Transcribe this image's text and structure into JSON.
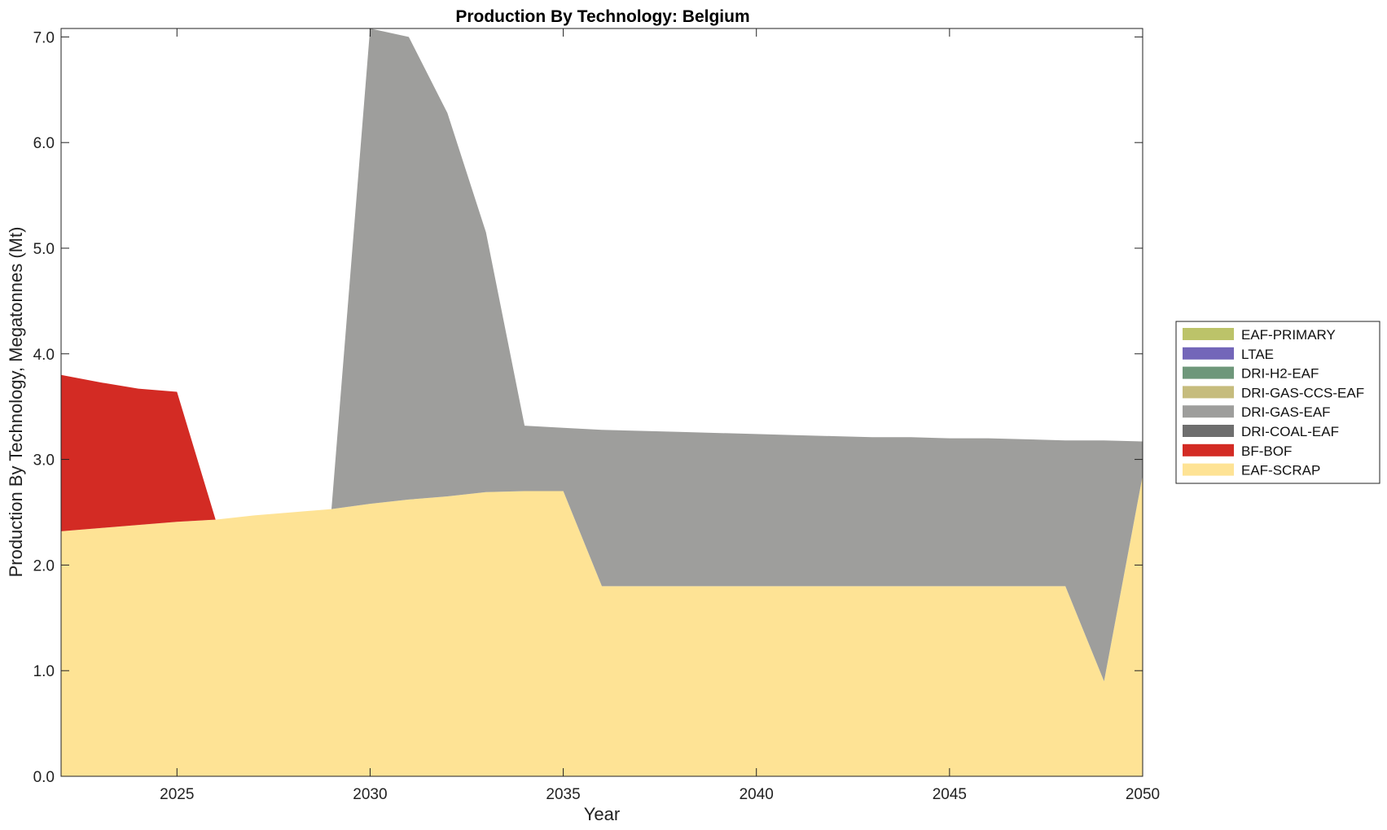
{
  "chart_data": {
    "type": "area",
    "stacked": true,
    "title": "Production By Technology: Belgium",
    "xlabel": "Year",
    "ylabel": "Production By Technology, Megatonnes (Mt)",
    "xlim": [
      2022,
      2050
    ],
    "ylim": [
      0,
      7.08
    ],
    "xticks": [
      2025,
      2030,
      2035,
      2040,
      2045,
      2050
    ],
    "yticks": [
      0.0,
      1.0,
      2.0,
      3.0,
      4.0,
      5.0,
      6.0,
      7.0
    ],
    "ytick_labels": [
      "0.0",
      "1.0",
      "2.0",
      "3.0",
      "4.0",
      "5.0",
      "6.0",
      "7.0"
    ],
    "grid": false,
    "legend_position": "right",
    "x": [
      2022,
      2023,
      2024,
      2025,
      2026,
      2027,
      2028,
      2029,
      2030,
      2031,
      2032,
      2033,
      2034,
      2035,
      2036,
      2037,
      2038,
      2039,
      2040,
      2041,
      2042,
      2043,
      2044,
      2045,
      2046,
      2047,
      2048,
      2049,
      2050
    ],
    "series": [
      {
        "name": "EAF-SCRAP",
        "color": "#fee395",
        "values": [
          2.32,
          2.35,
          2.38,
          2.41,
          2.43,
          2.47,
          2.5,
          2.53,
          2.58,
          2.62,
          2.65,
          2.69,
          2.7,
          2.7,
          1.8,
          1.8,
          1.8,
          1.8,
          1.8,
          1.8,
          1.8,
          1.8,
          1.8,
          1.8,
          1.8,
          1.8,
          1.8,
          0.9,
          2.85
        ]
      },
      {
        "name": "BF-BOF",
        "color": "#d32b24",
        "values": [
          1.48,
          1.38,
          1.29,
          1.23,
          0,
          0,
          0,
          0,
          0,
          0,
          0,
          0,
          0,
          0,
          0,
          0,
          0,
          0,
          0,
          0,
          0,
          0,
          0,
          0,
          0,
          0,
          0,
          0,
          0
        ]
      },
      {
        "name": "DRI-COAL-EAF",
        "color": "#6e6e6e",
        "values": [
          0,
          0,
          0,
          0,
          0,
          0,
          0,
          0,
          0,
          0,
          0,
          0,
          0,
          0,
          0,
          0,
          0,
          0,
          0,
          0,
          0,
          0,
          0,
          0,
          0,
          0,
          0,
          0,
          0
        ]
      },
      {
        "name": "DRI-GAS-EAF",
        "color": "#9e9e9c",
        "values": [
          0,
          0,
          0,
          0,
          0,
          0,
          0,
          0,
          4.5,
          4.38,
          3.63,
          2.46,
          0.62,
          0.6,
          1.48,
          1.47,
          1.46,
          1.45,
          1.44,
          1.43,
          1.42,
          1.41,
          1.41,
          1.4,
          1.4,
          1.39,
          1.38,
          2.28,
          0.32
        ]
      },
      {
        "name": "DRI-GAS-CCS-EAF",
        "color": "#c6bc7d",
        "values": [
          0,
          0,
          0,
          0,
          0,
          0,
          0,
          0,
          0,
          0,
          0,
          0,
          0,
          0,
          0,
          0,
          0,
          0,
          0,
          0,
          0,
          0,
          0,
          0,
          0,
          0,
          0,
          0,
          0
        ]
      },
      {
        "name": "DRI-H2-EAF",
        "color": "#6e977a",
        "values": [
          0,
          0,
          0,
          0,
          0,
          0,
          0,
          0,
          0,
          0,
          0,
          0,
          0,
          0,
          0,
          0,
          0,
          0,
          0,
          0,
          0,
          0,
          0,
          0,
          0,
          0,
          0,
          0,
          0
        ]
      },
      {
        "name": "LTAE",
        "color": "#7366b9",
        "values": [
          0,
          0,
          0,
          0,
          0,
          0,
          0,
          0,
          0,
          0,
          0,
          0,
          0,
          0,
          0,
          0,
          0,
          0,
          0,
          0,
          0,
          0,
          0,
          0,
          0,
          0,
          0,
          0,
          0
        ]
      },
      {
        "name": "EAF-PRIMARY",
        "color": "#bcc369",
        "values": [
          0,
          0,
          0,
          0,
          0,
          0,
          0,
          0,
          0,
          0,
          0,
          0,
          0,
          0,
          0,
          0,
          0,
          0,
          0,
          0,
          0,
          0,
          0,
          0,
          0,
          0,
          0,
          0,
          0
        ]
      }
    ],
    "legend": [
      "EAF-PRIMARY",
      "LTAE",
      "DRI-H2-EAF",
      "DRI-GAS-CCS-EAF",
      "DRI-GAS-EAF",
      "DRI-COAL-EAF",
      "BF-BOF",
      "EAF-SCRAP"
    ]
  }
}
